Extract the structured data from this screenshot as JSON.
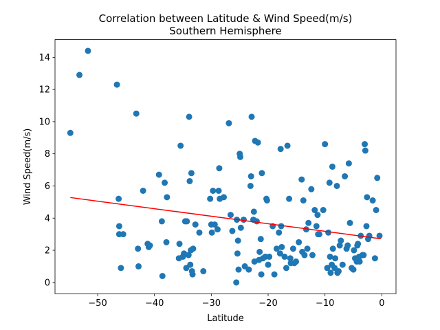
{
  "chart_data": {
    "type": "scatter",
    "title": "Correlation between Latitude & Wind Speed(m/s)",
    "subtitle": "Southern Hemisphere",
    "xlabel": "Latitude",
    "ylabel": "Wind Speed(m/s)",
    "xlim": [
      -57.5,
      2.5
    ],
    "ylim": [
      -0.7,
      15.1
    ],
    "xticks": [
      -50,
      -40,
      -30,
      -20,
      -10,
      0
    ],
    "yticks": [
      0,
      2,
      4,
      6,
      8,
      10,
      12,
      14
    ],
    "xtick_labels": [
      "−50",
      "−40",
      "−30",
      "−20",
      "−10",
      "0"
    ],
    "ytick_labels": [
      "0",
      "2",
      "4",
      "6",
      "8",
      "10",
      "12",
      "14"
    ],
    "grid": false,
    "marker_color": "#1f77b4",
    "regression_color": "#ff0000",
    "regression_line": {
      "x": [
        -54.8,
        -0.2
      ],
      "y": [
        5.28,
        2.72
      ]
    },
    "points": [
      [
        -54.8,
        9.3
      ],
      [
        -53.2,
        12.9
      ],
      [
        -51.7,
        14.4
      ],
      [
        -46.6,
        12.3
      ],
      [
        -46.3,
        5.2
      ],
      [
        -46.2,
        3.5
      ],
      [
        -46.2,
        3.0
      ],
      [
        -45.9,
        0.9
      ],
      [
        -45.5,
        3.0
      ],
      [
        -43.2,
        10.5
      ],
      [
        -42.9,
        2.1
      ],
      [
        -42.8,
        1.0
      ],
      [
        -42.0,
        5.7
      ],
      [
        -41.2,
        2.4
      ],
      [
        -41.0,
        2.2
      ],
      [
        -40.8,
        2.3
      ],
      [
        -39.2,
        6.7
      ],
      [
        -38.7,
        3.8
      ],
      [
        -38.6,
        0.4
      ],
      [
        -38.2,
        6.2
      ],
      [
        -37.9,
        2.5
      ],
      [
        -37.8,
        5.3
      ],
      [
        -35.7,
        1.5
      ],
      [
        -35.6,
        2.4
      ],
      [
        -35.4,
        8.5
      ],
      [
        -35.0,
        1.6
      ],
      [
        -34.8,
        1.8
      ],
      [
        -34.6,
        3.8
      ],
      [
        -34.4,
        0.9
      ],
      [
        -34.3,
        3.8
      ],
      [
        -34.0,
        1.7
      ],
      [
        -33.9,
        10.3
      ],
      [
        -33.8,
        6.3
      ],
      [
        -33.7,
        1.1
      ],
      [
        -33.6,
        2.0
      ],
      [
        -33.5,
        6.8
      ],
      [
        -33.4,
        0.7
      ],
      [
        -33.3,
        0.5
      ],
      [
        -33.2,
        2.1
      ],
      [
        -32.8,
        3.6
      ],
      [
        -32.1,
        3.1
      ],
      [
        -31.4,
        0.7
      ],
      [
        -30.2,
        5.2
      ],
      [
        -30.0,
        3.6
      ],
      [
        -29.9,
        3.1
      ],
      [
        -29.7,
        5.7
      ],
      [
        -29.4,
        3.6
      ],
      [
        -28.9,
        3.3
      ],
      [
        -28.7,
        5.7
      ],
      [
        -28.6,
        7.1
      ],
      [
        -28.5,
        5.2
      ],
      [
        -27.8,
        5.3
      ],
      [
        -26.9,
        9.9
      ],
      [
        -26.6,
        4.2
      ],
      [
        -26.3,
        3.2
      ],
      [
        -25.6,
        0.0
      ],
      [
        -25.5,
        3.9
      ],
      [
        -25.4,
        1.8
      ],
      [
        -25.3,
        2.6
      ],
      [
        -25.2,
        0.8
      ],
      [
        -25.0,
        8.0
      ],
      [
        -24.9,
        7.8
      ],
      [
        -24.8,
        3.4
      ],
      [
        -24.3,
        3.9
      ],
      [
        -24.1,
        1.0
      ],
      [
        -23.4,
        0.8
      ],
      [
        -23.1,
        6.0
      ],
      [
        -23.0,
        6.6
      ],
      [
        -22.9,
        10.3
      ],
      [
        -22.6,
        3.9
      ],
      [
        -22.5,
        4.4
      ],
      [
        -22.4,
        1.3
      ],
      [
        -22.3,
        8.8
      ],
      [
        -22.0,
        3.8
      ],
      [
        -21.8,
        8.7
      ],
      [
        -21.6,
        1.4
      ],
      [
        -21.5,
        1.9
      ],
      [
        -21.3,
        2.7
      ],
      [
        -21.2,
        0.5
      ],
      [
        -21.1,
        6.8
      ],
      [
        -20.9,
        1.5
      ],
      [
        -20.5,
        1.6
      ],
      [
        -20.3,
        5.2
      ],
      [
        -20.2,
        5.1
      ],
      [
        -20.0,
        1.1
      ],
      [
        -19.8,
        1.6
      ],
      [
        -19.2,
        3.5
      ],
      [
        -18.9,
        0.5
      ],
      [
        -18.5,
        2.1
      ],
      [
        -18.1,
        3.1
      ],
      [
        -17.9,
        1.8
      ],
      [
        -17.8,
        8.3
      ],
      [
        -17.7,
        3.5
      ],
      [
        -17.6,
        2.2
      ],
      [
        -17.1,
        1.6
      ],
      [
        -16.8,
        0.9
      ],
      [
        -16.6,
        8.5
      ],
      [
        -16.3,
        5.2
      ],
      [
        -16.1,
        1.5
      ],
      [
        -16.0,
        1.2
      ],
      [
        -15.6,
        2.1
      ],
      [
        -15.4,
        1.2
      ],
      [
        -15.1,
        1.3
      ],
      [
        -14.6,
        2.5
      ],
      [
        -14.1,
        6.4
      ],
      [
        -14.0,
        1.9
      ],
      [
        -13.8,
        5.1
      ],
      [
        -13.6,
        1.7
      ],
      [
        -13.3,
        3.3
      ],
      [
        -13.1,
        2.1
      ],
      [
        -12.9,
        3.7
      ],
      [
        -12.4,
        5.8
      ],
      [
        -12.2,
        1.7
      ],
      [
        -11.8,
        4.5
      ],
      [
        -11.5,
        3.5
      ],
      [
        -11.3,
        4.2
      ],
      [
        -11.2,
        3.0
      ],
      [
        -11.0,
        3.0
      ],
      [
        -10.3,
        4.5
      ],
      [
        -10.0,
        8.6
      ],
      [
        -9.6,
        0.9
      ],
      [
        -9.4,
        3.1
      ],
      [
        -9.2,
        6.2
      ],
      [
        -9.1,
        1.6
      ],
      [
        -9.0,
        0.6
      ],
      [
        -8.8,
        1.1
      ],
      [
        -8.7,
        7.2
      ],
      [
        -8.6,
        2.1
      ],
      [
        -8.3,
        0.9
      ],
      [
        -8.2,
        1.5
      ],
      [
        -7.9,
        6.0
      ],
      [
        -7.8,
        0.6
      ],
      [
        -7.6,
        0.7
      ],
      [
        -7.4,
        2.3
      ],
      [
        -7.2,
        2.6
      ],
      [
        -6.9,
        1.1
      ],
      [
        -6.5,
        6.6
      ],
      [
        -6.2,
        2.1
      ],
      [
        -6.0,
        2.3
      ],
      [
        -5.8,
        7.4
      ],
      [
        -5.6,
        3.7
      ],
      [
        -5.3,
        0.9
      ],
      [
        -5.0,
        0.8
      ],
      [
        -4.9,
        2.0
      ],
      [
        -4.7,
        1.5
      ],
      [
        -4.4,
        1.3
      ],
      [
        -4.3,
        2.3
      ],
      [
        -4.2,
        2.4
      ],
      [
        -4.0,
        1.6
      ],
      [
        -3.9,
        1.3
      ],
      [
        -3.7,
        2.9
      ],
      [
        -3.4,
        1.7
      ],
      [
        -3.2,
        1.7
      ],
      [
        -3.0,
        8.6
      ],
      [
        -2.9,
        8.2
      ],
      [
        -2.7,
        3.5
      ],
      [
        -2.6,
        5.3
      ],
      [
        -2.4,
        2.7
      ],
      [
        -2.2,
        2.9
      ],
      [
        -1.6,
        5.1
      ],
      [
        -1.2,
        1.5
      ],
      [
        -1.0,
        4.5
      ],
      [
        -0.8,
        6.5
      ],
      [
        -0.4,
        2.9
      ]
    ]
  }
}
